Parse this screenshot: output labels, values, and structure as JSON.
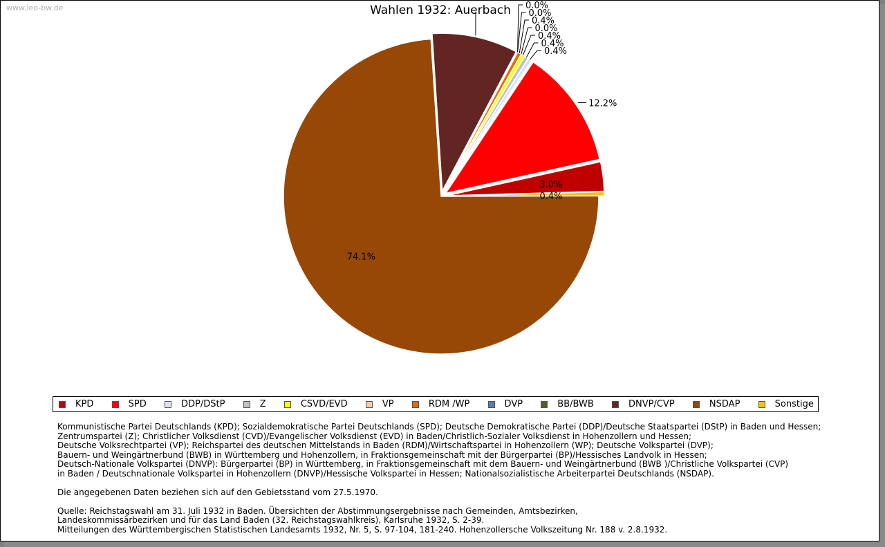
{
  "watermark": "www.leo-bw.de",
  "chart_data": {
    "type": "pie",
    "title": "Wahlen 1932: Auerbach",
    "slices": [
      {
        "name": "Sonstige",
        "value": 0.4,
        "label": "0.4%",
        "color": "#ffc000"
      },
      {
        "name": "KPD",
        "value": 3.0,
        "label": "3.0%",
        "color": "#c00000"
      },
      {
        "name": "SPD",
        "value": 12.2,
        "label": "12.2%",
        "color": "#ff0000"
      },
      {
        "name": "DDP/DStP",
        "value": 0.4,
        "label": "0.4%",
        "color": "#d8e4f4"
      },
      {
        "name": "Z",
        "value": 0.4,
        "label": "0.4%",
        "color": "#c0c0c0"
      },
      {
        "name": "CSVD/EVD",
        "value": 0.4,
        "label": "0.4%",
        "color": "#ffff00"
      },
      {
        "name": "VP",
        "value": 0.0,
        "label": "0.0%",
        "color": "#f8cbad"
      },
      {
        "name": "RDM /WP",
        "value": 0.4,
        "label": "0.4%",
        "color": "#e46c0a"
      },
      {
        "name": "DVP",
        "value": 0.0,
        "label": "0.0%",
        "color": "#4f81bd"
      },
      {
        "name": "BB/BWB",
        "value": 0.0,
        "label": "0.0%",
        "color": "#4f6228"
      },
      {
        "name": "DNVP/CVP",
        "value": 8.8,
        "label": "",
        "color": "#632523"
      },
      {
        "name": "NSDAP",
        "value": 74.1,
        "label": "74.1%",
        "color": "#974806"
      }
    ],
    "legend": [
      {
        "name": "KPD",
        "color": "#c00000"
      },
      {
        "name": "SPD",
        "color": "#ff0000"
      },
      {
        "name": "DDP/DStP",
        "color": "#d8e4f4"
      },
      {
        "name": "Z",
        "color": "#c0c0c0"
      },
      {
        "name": "CSVD/EVD",
        "color": "#ffff00"
      },
      {
        "name": "VP",
        "color": "#f8cbad"
      },
      {
        "name": "RDM /WP",
        "color": "#e46c0a"
      },
      {
        "name": "DVP",
        "color": "#4f81bd"
      },
      {
        "name": "BB/BWB",
        "color": "#4f6228"
      },
      {
        "name": "DNVP/CVP",
        "color": "#632523"
      },
      {
        "name": "NSDAP",
        "color": "#974806"
      },
      {
        "name": "Sonstige",
        "color": "#ffc000"
      }
    ],
    "legend_placement": "bottom"
  },
  "notes": {
    "parties": [
      "Kommunistische Partei Deutschlands (KPD); Sozialdemokratische Partei Deutschlands (SPD); Deutsche Demokratische Partei (DDP)/Deutsche Staatspartei (DStP) in Baden und Hessen;",
      "Zentrumspartei (Z); Christlicher Volksdienst (CVD)/Evangelischer Volksdienst (EVD) in Baden/Christlich-Sozialer Volksdienst in Hohenzollern und Hessen;",
      "Deutsche Volksrechtpartei (VP); Reichspartei des deutschen Mittelstands in Baden (RDM)/Wirtschaftspartei in Hohenzollern (WP); Deutsche Volkspartei (DVP);",
      "Bauern- und Weingärtnerbund (BWB) in Württemberg und Hohenzollern, in Fraktionsgemeinschaft mit der Bürgerpartei (BP)/Hessisches Landvolk in Hessen;",
      "Deutsch-Nationale Volkspartei (DNVP): Bürgerpartei (BP) in Württemberg, in Fraktionsgemeinschaft mit dem Bauern- und Weingärtnerbund (BWB )/Christliche Volkspartei (CVP)",
      "in Baden / Deutschnationale Volkspartei in Hohenzollern (DNVP)/Hessische Volkspartei in Hessen; Nationalsozialistische Arbeiterpartei Deutschlands (NSDAP)."
    ],
    "territory": "Die angegebenen Daten beziehen sich auf den Gebietsstand vom 27.5.1970.",
    "source": [
      "Quelle: Reichstagswahl am 31. Juli 1932 in Baden. Übersichten der Abstimmungsergebnisse nach Gemeinden, Amtsbezirken,",
      "Landeskommissärbezirken und für das Land Baden (32. Reichstagswahlkreis), Karlsruhe 1932, S. 2-39.",
      "Mitteilungen des Württembergischen Statistischen Landesamts 1932, Nr. 5, S. 97-104, 181-240. Hohenzollersche Volkszeitung Nr. 188 v. 2.8.1932."
    ]
  }
}
